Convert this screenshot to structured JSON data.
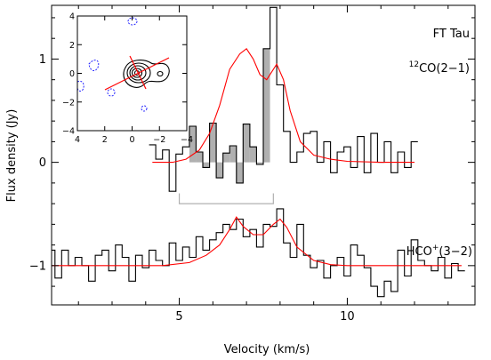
{
  "chart_data": {
    "type": "line",
    "xlabel": "Velocity (km/s)",
    "ylabel": "Flux density (Jy)",
    "xlim": [
      1.2,
      13.8
    ],
    "ylim": [
      -1.38,
      1.52
    ],
    "x_ticks": [
      5,
      10
    ],
    "y_ticks": [
      -1,
      0,
      1
    ],
    "source_label": "FT Tau",
    "line_labels": [
      {
        "name": "CO",
        "sup": "12",
        "rest": "(2−1)"
      },
      {
        "name": "HCO",
        "sup": "+",
        "rest": "(3−2)"
      }
    ],
    "colors": {
      "data": "#000000",
      "model": "#ff0000",
      "mask": "#b0b0b0",
      "contour": "#000000",
      "negative_contour": "#2222ff"
    },
    "series": [
      {
        "name": "12CO(2-1)",
        "style": "steps",
        "x": [
          4.2,
          4.4,
          4.6,
          4.8,
          5.0,
          5.2,
          5.4,
          5.6,
          5.8,
          6.0,
          6.2,
          6.4,
          6.6,
          6.8,
          7.0,
          7.2,
          7.4,
          7.6,
          7.8,
          8.0,
          8.2,
          8.4,
          8.6,
          8.8,
          9.0,
          9.2,
          9.4,
          9.6,
          9.8,
          10.0,
          10.2,
          10.4,
          10.6,
          10.8,
          11.0,
          11.2,
          11.4,
          11.6,
          11.8,
          12.0
        ],
        "y": [
          0.17,
          0.03,
          0.12,
          -0.28,
          0.08,
          0.15,
          0.35,
          0.1,
          -0.05,
          0.38,
          -0.15,
          0.09,
          0.16,
          -0.2,
          0.37,
          0.15,
          -0.02,
          1.1,
          1.5,
          0.75,
          0.3,
          0.0,
          0.1,
          0.28,
          0.3,
          0.0,
          0.2,
          -0.1,
          0.1,
          0.15,
          -0.05,
          0.25,
          -0.1,
          0.28,
          0.0,
          0.2,
          -0.1,
          0.1,
          -0.05,
          0.2
        ]
      },
      {
        "name": "12CO model",
        "style": "line",
        "x": [
          4.2,
          4.8,
          5.2,
          5.6,
          5.9,
          6.2,
          6.5,
          6.8,
          7.0,
          7.2,
          7.4,
          7.6,
          7.9,
          8.1,
          8.3,
          8.6,
          9.0,
          9.5,
          10.0,
          11.0,
          12.0
        ],
        "y": [
          0.0,
          0.0,
          0.03,
          0.12,
          0.28,
          0.55,
          0.9,
          1.05,
          1.1,
          1.0,
          0.85,
          0.8,
          0.95,
          0.8,
          0.5,
          0.2,
          0.07,
          0.03,
          0.01,
          0.0,
          0.0
        ]
      },
      {
        "name": "HCO+(3-2)",
        "style": "steps",
        "x": [
          1.2,
          1.4,
          1.6,
          1.8,
          2.0,
          2.2,
          2.4,
          2.6,
          2.8,
          3.0,
          3.2,
          3.4,
          3.6,
          3.8,
          4.0,
          4.2,
          4.4,
          4.6,
          4.8,
          5.0,
          5.2,
          5.4,
          5.6,
          5.8,
          6.0,
          6.2,
          6.4,
          6.6,
          6.8,
          7.0,
          7.2,
          7.4,
          7.6,
          7.8,
          8.0,
          8.2,
          8.4,
          8.6,
          8.8,
          9.0,
          9.2,
          9.4,
          9.6,
          9.8,
          10.0,
          10.2,
          10.4,
          10.6,
          10.8,
          11.0,
          11.2,
          11.4,
          11.6,
          11.8,
          12.0,
          12.2,
          12.4,
          12.6,
          12.8,
          13.0,
          13.2,
          13.4
        ],
        "y": [
          -0.85,
          -1.12,
          -0.85,
          -1.0,
          -0.92,
          -1.0,
          -1.15,
          -0.9,
          -0.85,
          -1.05,
          -0.8,
          -0.92,
          -1.15,
          -0.9,
          -1.02,
          -0.85,
          -0.95,
          -1.0,
          -0.78,
          -0.95,
          -0.82,
          -0.92,
          -0.72,
          -0.85,
          -0.75,
          -0.68,
          -0.6,
          -0.65,
          -0.55,
          -0.72,
          -0.65,
          -0.82,
          -0.6,
          -0.62,
          -0.45,
          -0.78,
          -0.92,
          -0.6,
          -0.9,
          -1.02,
          -0.95,
          -1.12,
          -1.0,
          -0.92,
          -1.1,
          -0.8,
          -0.9,
          -1.02,
          -1.2,
          -1.3,
          -1.15,
          -1.25,
          -0.85,
          -1.1,
          -0.75,
          -0.95,
          -1.0,
          -1.05,
          -0.92,
          -1.12,
          -0.98,
          -1.05
        ]
      },
      {
        "name": "HCO+ model",
        "style": "line",
        "x": [
          1.2,
          3.0,
          4.5,
          5.3,
          5.8,
          6.2,
          6.5,
          6.7,
          6.9,
          7.2,
          7.5,
          7.8,
          8.0,
          8.2,
          8.5,
          9.0,
          9.5,
          10.0,
          11.0,
          12.0,
          13.4
        ],
        "y": [
          -1.0,
          -1.0,
          -1.0,
          -0.97,
          -0.9,
          -0.8,
          -0.65,
          -0.53,
          -0.62,
          -0.7,
          -0.7,
          -0.6,
          -0.55,
          -0.63,
          -0.82,
          -0.95,
          -0.99,
          -1.0,
          -1.0,
          -1.0,
          -1.0
        ]
      }
    ],
    "masked_channels": {
      "x_from": 5.4,
      "x_to": 7.8
    },
    "velocity_bracket": {
      "x_from": 5.0,
      "x_to": 7.8,
      "y": -0.4
    },
    "inset": {
      "xlim": [
        4,
        -4
      ],
      "ylim": [
        -4,
        4
      ],
      "x_ticks": [
        4,
        2,
        0,
        -2,
        -4
      ],
      "y_ticks": [
        -4,
        -2,
        0,
        2,
        4
      ],
      "x_tick_labels": [
        "4",
        "2",
        "0",
        "−2",
        "−4"
      ],
      "y_tick_labels": [
        "−4",
        "−2",
        "0",
        "2",
        "4"
      ]
    }
  }
}
